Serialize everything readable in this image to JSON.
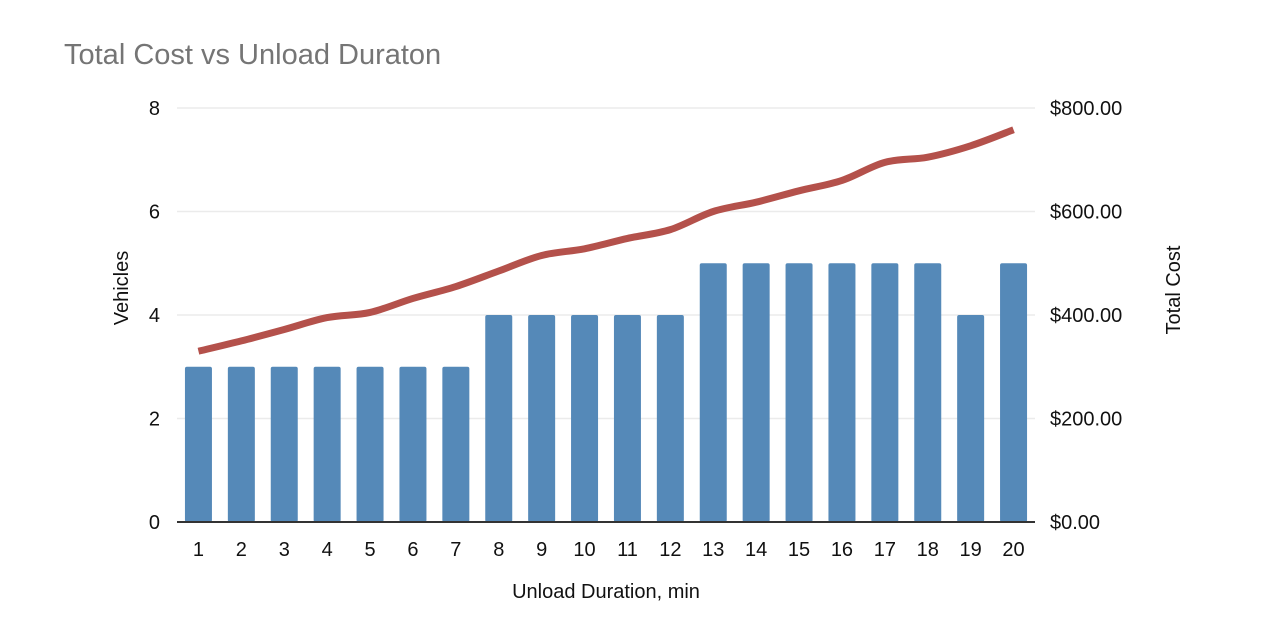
{
  "chart_data": {
    "type": "bar",
    "title": "Total Cost vs Unload Duraton",
    "xlabel": "Unload Duration, min",
    "ylabel": "Vehicles",
    "y2label": "Total Cost",
    "categories": [
      "1",
      "2",
      "3",
      "4",
      "5",
      "6",
      "7",
      "8",
      "9",
      "10",
      "11",
      "12",
      "13",
      "14",
      "15",
      "16",
      "17",
      "18",
      "19",
      "20"
    ],
    "ylim": [
      0,
      8
    ],
    "y_ticks": [
      "0",
      "2",
      "4",
      "6",
      "8"
    ],
    "y2lim": [
      0,
      800
    ],
    "y2_ticks": [
      "$0.00",
      "$200.00",
      "$400.00",
      "$600.00",
      "$800.00"
    ],
    "grid": true,
    "series": [
      {
        "type": "bar",
        "axis": "left",
        "color": "#5589b8",
        "values": [
          3,
          3,
          3,
          3,
          3,
          3,
          3,
          4,
          4,
          4,
          4,
          4,
          5,
          5,
          5,
          5,
          5,
          5,
          4,
          5
        ]
      },
      {
        "type": "line",
        "axis": "right",
        "color": "#b4514b",
        "values": [
          330,
          350,
          372,
          395,
          405,
          432,
          455,
          485,
          515,
          528,
          548,
          565,
          600,
          618,
          640,
          660,
          695,
          705,
          727,
          758
        ]
      }
    ]
  }
}
